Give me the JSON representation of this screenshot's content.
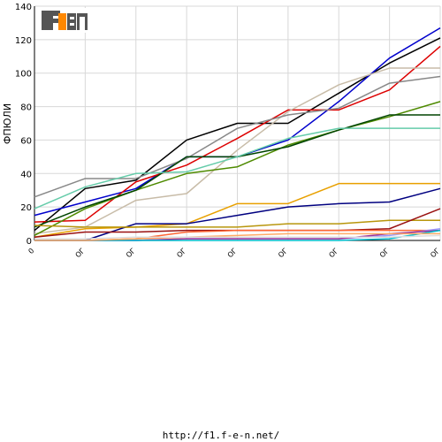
{
  "chart_data": {
    "type": "line",
    "ylabel": "ФПЮЛИ",
    "ylim": [
      0,
      140
    ],
    "y_ticks": [
      0,
      20,
      40,
      60,
      80,
      100,
      120,
      140
    ],
    "x_tick_labels": [
      "0",
      "OГ",
      "OГ",
      "OГ",
      "OГ",
      "OГ",
      "OГ",
      "OГ",
      "OГ"
    ],
    "x": [
      0,
      1,
      2,
      3,
      4,
      5,
      6,
      7,
      8
    ],
    "grid": true,
    "series": [
      {
        "color": "#000000",
        "values": [
          6,
          31,
          36,
          60,
          70,
          70,
          88,
          106,
          121
        ]
      },
      {
        "color": "#0000cc",
        "values": [
          15,
          23,
          31,
          50,
          50,
          60,
          83,
          109,
          127
        ]
      },
      {
        "color": "#dd0000",
        "values": [
          11,
          12,
          35,
          45,
          61,
          78,
          78,
          90,
          116
        ]
      },
      {
        "color": "#c8bca8",
        "values": [
          4,
          8,
          24,
          28,
          54,
          77,
          93,
          103,
          103
        ]
      },
      {
        "color": "#888888",
        "values": [
          26,
          37,
          37,
          49,
          67,
          75,
          79,
          94,
          98
        ]
      },
      {
        "color": "#4e8a00",
        "values": [
          3,
          19,
          30,
          40,
          44,
          57,
          66,
          74,
          83
        ]
      },
      {
        "color": "#004400",
        "values": [
          8,
          20,
          30,
          50,
          50,
          56,
          66,
          75,
          75
        ]
      },
      {
        "color": "#66ccaa",
        "values": [
          19,
          32,
          40,
          41,
          50,
          61,
          67,
          67,
          67
        ]
      },
      {
        "color": "#e8a000",
        "values": [
          2,
          7,
          8,
          10,
          22,
          22,
          34,
          34,
          34
        ]
      },
      {
        "color": "#000080",
        "values": [
          0,
          0,
          10,
          10,
          15,
          20,
          22,
          23,
          31
        ]
      },
      {
        "color": "#b8960c",
        "values": [
          9,
          8,
          8,
          8,
          8,
          10,
          10,
          12,
          12
        ]
      },
      {
        "color": "#991111",
        "values": [
          2,
          5,
          5,
          6,
          6,
          6,
          6,
          7,
          19
        ]
      },
      {
        "color": "#ff6633",
        "values": [
          0,
          0,
          1,
          5,
          6,
          6,
          6,
          6,
          6
        ]
      },
      {
        "color": "#9999ff",
        "values": [
          0,
          0,
          0,
          1,
          1,
          1,
          1,
          3,
          7
        ]
      },
      {
        "color": "#993399",
        "values": [
          0,
          0,
          0,
          1,
          1,
          1,
          1,
          4,
          6
        ]
      },
      {
        "color": "#00bbcc",
        "values": [
          0,
          0,
          0,
          0,
          0,
          0,
          0,
          1,
          6
        ]
      },
      {
        "color": "#ffaa66",
        "values": [
          0,
          0,
          1,
          2,
          3,
          4,
          4,
          4,
          4
        ]
      },
      {
        "color": "#dddddd",
        "values": [
          1,
          1,
          2,
          2,
          2,
          2,
          2,
          2,
          3
        ]
      }
    ]
  },
  "logo": {
    "text": "F1EN",
    "colors": {
      "dark": "#555555",
      "accent": "#ff8800"
    }
  },
  "footer": {
    "url": "http://f1.f-e-n.net/"
  }
}
